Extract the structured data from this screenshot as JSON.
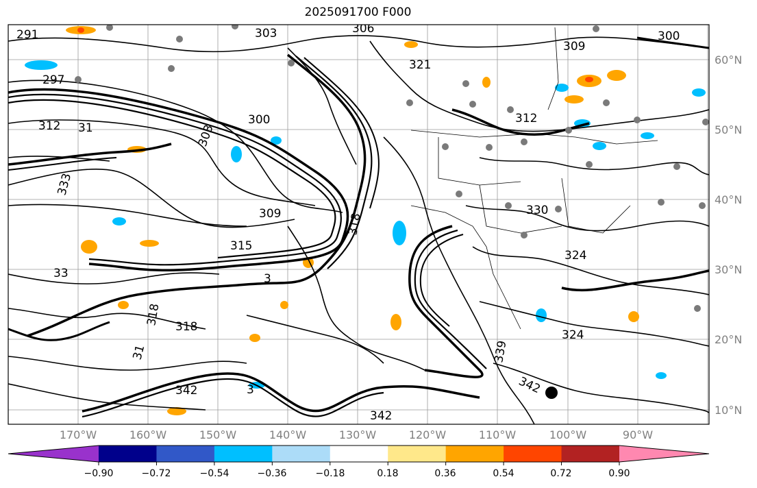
{
  "title": "2025091700 F000",
  "lat_labels": [
    "60°N",
    "50°N",
    "40°N",
    "30°N",
    "20°N",
    "10°N"
  ],
  "lon_labels": [
    "170°W",
    "160°W",
    "150°W",
    "140°W",
    "130°W",
    "120°W",
    "110°W",
    "100°W",
    "90°W"
  ],
  "contour_labels": [
    "291",
    "303",
    "306",
    "309",
    "321",
    "297",
    "312",
    "31",
    "300",
    "303",
    "312",
    "333",
    "309",
    "318",
    "315",
    "3",
    "33",
    "318",
    "318",
    "31",
    "342",
    "339",
    "342",
    "3",
    "330",
    "324",
    "342",
    "324",
    "300"
  ],
  "colorbar": {
    "ticks": [
      "−0.90",
      "−0.72",
      "−0.54",
      "−0.36",
      "−0.18",
      "0.18",
      "0.36",
      "0.54",
      "0.72",
      "0.90"
    ],
    "colors": [
      "#9932cc",
      "#00008b",
      "#3158c8",
      "#00bfff",
      "#acdcf8",
      "#ffffff",
      "#ffe88a",
      "#ffa500",
      "#ff4500",
      "#b22222",
      "#ff88b0"
    ]
  }
}
